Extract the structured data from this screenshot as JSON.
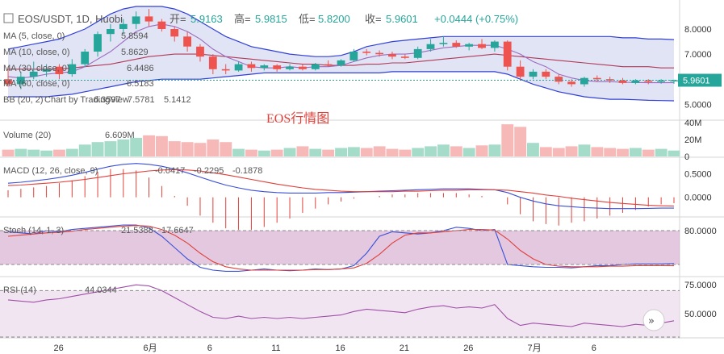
{
  "header": {
    "symbol": "EOS/USDT, 1D, Huobi",
    "open_label": "开=",
    "open": "5.9163",
    "high_label": "高=",
    "high": "5.9815",
    "low_label": "低=",
    "low": "5.8200",
    "close_label": "收=",
    "close": "5.9601",
    "change": "+0.0444 (+0.75%)"
  },
  "watermark": "EOS行情图",
  "logo_text": "Chart by TradingView",
  "colors": {
    "up": "#26a69a",
    "down": "#ef5350",
    "up_vol": "#a5dcc9",
    "down_vol": "#f7b9b8",
    "ma5": "#9c6bbf",
    "ma10": "#6a8fd8",
    "ma30": "#5aa55a",
    "ma60": "#b03a5a",
    "bb_upper": "#3140d8",
    "bb_lower": "#3140d8",
    "bb_fill": "#d4d8f0",
    "macd": "#3a4fd8",
    "signal": "#e0403a",
    "hist": "#e0403a",
    "stoch_k": "#3a4fd8",
    "stoch_d": "#e0403a",
    "stoch_band": "#cc9bc7",
    "rsi": "#a04fa8",
    "rsi_band": "#ead4ea"
  },
  "indicators": {
    "ma5": {
      "label": "MA (5, close, 0)",
      "value": "5.8594"
    },
    "ma10": {
      "label": "MA (10, close, 0)",
      "value": "5.8629"
    },
    "ma30": {
      "label": "MA (30, close, 0)",
      "value": "6.4486"
    },
    "ma60": {
      "label": "MA (60, close, 0)",
      "value": "6.5183"
    },
    "bb": {
      "label": "BB (20, 2)",
      "v1": "6.3597",
      "v2": "7.5781",
      "v3": "5.1412"
    },
    "volume": {
      "label": "Volume (20)",
      "value": "6.609M"
    },
    "macd": {
      "label": "MACD (12, 26, close, 9)",
      "v1": "-0.0417",
      "v2": "-0.2295",
      "v3": "-0.1878"
    },
    "stoch": {
      "label": "Stoch (14, 1, 3)",
      "v1": "21.5388",
      "v2": "17.6647"
    },
    "rsi": {
      "label": "RSI (14)",
      "value": "44.0344"
    }
  },
  "chart_data": [
    {
      "type": "candlestick",
      "title": "EOS/USDT, 1D, Huobi",
      "x_ticks": [
        "26",
        "6月",
        "6",
        "11",
        "16",
        "21",
        "26",
        "7月",
        "6"
      ],
      "y_ticks": [
        8.0,
        7.0,
        6.0,
        5.0
      ],
      "ylim": [
        4.4,
        8.9
      ],
      "last_price": "5.9601",
      "candles": [
        {
          "o": 6.0,
          "h": 6.5,
          "l": 5.7,
          "c": 5.8
        },
        {
          "o": 5.8,
          "h": 6.3,
          "l": 5.6,
          "c": 6.1
        },
        {
          "o": 6.1,
          "h": 6.7,
          "l": 6.0,
          "c": 6.3
        },
        {
          "o": 6.3,
          "h": 6.6,
          "l": 6.1,
          "c": 6.4
        },
        {
          "o": 6.5,
          "h": 6.6,
          "l": 6.0,
          "c": 6.2
        },
        {
          "o": 6.2,
          "h": 6.8,
          "l": 6.1,
          "c": 6.6
        },
        {
          "o": 6.6,
          "h": 7.2,
          "l": 6.5,
          "c": 7.1
        },
        {
          "o": 7.1,
          "h": 7.9,
          "l": 6.9,
          "c": 7.8
        },
        {
          "o": 7.8,
          "h": 8.2,
          "l": 7.5,
          "c": 8.0
        },
        {
          "o": 8.0,
          "h": 8.4,
          "l": 7.8,
          "c": 8.2
        },
        {
          "o": 8.2,
          "h": 8.7,
          "l": 8.0,
          "c": 8.5
        },
        {
          "o": 8.5,
          "h": 8.8,
          "l": 8.1,
          "c": 8.3
        },
        {
          "o": 8.3,
          "h": 8.4,
          "l": 7.9,
          "c": 8.0
        },
        {
          "o": 8.0,
          "h": 8.1,
          "l": 7.5,
          "c": 7.7
        },
        {
          "o": 7.7,
          "h": 7.9,
          "l": 7.1,
          "c": 7.3
        },
        {
          "o": 7.3,
          "h": 7.4,
          "l": 6.7,
          "c": 6.9
        },
        {
          "o": 6.9,
          "h": 7.0,
          "l": 6.2,
          "c": 6.4
        },
        {
          "o": 6.4,
          "h": 6.6,
          "l": 6.2,
          "c": 6.35
        },
        {
          "o": 6.35,
          "h": 6.7,
          "l": 6.3,
          "c": 6.6
        },
        {
          "o": 6.6,
          "h": 6.7,
          "l": 6.3,
          "c": 6.45
        },
        {
          "o": 6.45,
          "h": 6.6,
          "l": 6.35,
          "c": 6.55
        },
        {
          "o": 6.55,
          "h": 6.6,
          "l": 6.3,
          "c": 6.4
        },
        {
          "o": 6.4,
          "h": 6.6,
          "l": 6.35,
          "c": 6.5
        },
        {
          "o": 6.5,
          "h": 6.6,
          "l": 6.35,
          "c": 6.4
        },
        {
          "o": 6.4,
          "h": 6.65,
          "l": 6.35,
          "c": 6.6
        },
        {
          "o": 6.6,
          "h": 6.75,
          "l": 6.5,
          "c": 6.55
        },
        {
          "o": 6.55,
          "h": 6.8,
          "l": 6.5,
          "c": 6.75
        },
        {
          "o": 6.75,
          "h": 7.2,
          "l": 6.7,
          "c": 7.1
        },
        {
          "o": 7.1,
          "h": 7.2,
          "l": 6.95,
          "c": 7.05
        },
        {
          "o": 7.05,
          "h": 7.15,
          "l": 6.9,
          "c": 7.0
        },
        {
          "o": 7.0,
          "h": 7.1,
          "l": 6.8,
          "c": 6.9
        },
        {
          "o": 6.9,
          "h": 7.0,
          "l": 6.8,
          "c": 6.85
        },
        {
          "o": 6.85,
          "h": 7.3,
          "l": 6.8,
          "c": 7.2
        },
        {
          "o": 7.2,
          "h": 7.6,
          "l": 7.1,
          "c": 7.4
        },
        {
          "o": 7.4,
          "h": 7.7,
          "l": 7.3,
          "c": 7.45
        },
        {
          "o": 7.45,
          "h": 7.55,
          "l": 7.25,
          "c": 7.3
        },
        {
          "o": 7.3,
          "h": 7.45,
          "l": 7.15,
          "c": 7.4
        },
        {
          "o": 7.4,
          "h": 7.6,
          "l": 7.2,
          "c": 7.25
        },
        {
          "o": 7.25,
          "h": 7.55,
          "l": 7.1,
          "c": 7.5
        },
        {
          "o": 7.5,
          "h": 7.55,
          "l": 6.35,
          "c": 6.5
        },
        {
          "o": 6.5,
          "h": 6.75,
          "l": 5.95,
          "c": 6.1
        },
        {
          "o": 6.1,
          "h": 6.4,
          "l": 6.0,
          "c": 6.3
        },
        {
          "o": 6.3,
          "h": 6.4,
          "l": 6.0,
          "c": 6.1
        },
        {
          "o": 6.1,
          "h": 6.2,
          "l": 5.8,
          "c": 5.9
        },
        {
          "o": 5.9,
          "h": 6.0,
          "l": 5.7,
          "c": 5.8
        },
        {
          "o": 5.8,
          "h": 6.1,
          "l": 5.7,
          "c": 6.05
        },
        {
          "o": 6.05,
          "h": 6.15,
          "l": 5.9,
          "c": 6.0
        },
        {
          "o": 6.0,
          "h": 6.1,
          "l": 5.85,
          "c": 5.95
        },
        {
          "o": 5.95,
          "h": 6.05,
          "l": 5.8,
          "c": 5.85
        },
        {
          "o": 5.85,
          "h": 6.0,
          "l": 5.8,
          "c": 5.95
        },
        {
          "o": 5.95,
          "h": 6.0,
          "l": 5.8,
          "c": 5.9
        },
        {
          "o": 5.9,
          "h": 6.0,
          "l": 5.82,
          "c": 5.95
        },
        {
          "o": 5.9163,
          "h": 5.9815,
          "l": 5.82,
          "c": 5.9601
        }
      ],
      "bb_upper": [
        7.2,
        7.3,
        7.4,
        7.5,
        7.6,
        7.8,
        8.0,
        8.3,
        8.6,
        8.8,
        8.9,
        8.9,
        8.9,
        8.8,
        8.6,
        8.3,
        8.0,
        7.7,
        7.5,
        7.3,
        7.2,
        7.1,
        7.0,
        6.95,
        6.9,
        6.9,
        6.95,
        7.1,
        7.3,
        7.4,
        7.5,
        7.55,
        7.6,
        7.65,
        7.7,
        7.7,
        7.7,
        7.7,
        7.7,
        7.7,
        7.7,
        7.7,
        7.7,
        7.7,
        7.7,
        7.7,
        7.7,
        7.7,
        7.65,
        7.65,
        7.6,
        7.6,
        7.58
      ],
      "bb_lower": [
        5.3,
        5.3,
        5.3,
        5.3,
        5.35,
        5.4,
        5.5,
        5.6,
        5.7,
        5.8,
        5.9,
        5.95,
        6.0,
        6.0,
        6.0,
        6.0,
        6.05,
        6.1,
        6.15,
        6.2,
        6.25,
        6.25,
        6.25,
        6.25,
        6.25,
        6.25,
        6.25,
        6.25,
        6.25,
        6.25,
        6.3,
        6.3,
        6.3,
        6.3,
        6.3,
        6.3,
        6.3,
        6.3,
        6.3,
        6.2,
        6.0,
        5.8,
        5.65,
        5.5,
        5.4,
        5.3,
        5.25,
        5.2,
        5.2,
        5.18,
        5.16,
        5.15,
        5.14
      ],
      "ma_fast": [
        6.1,
        6.05,
        6.1,
        6.2,
        6.25,
        6.3,
        6.5,
        6.8,
        7.1,
        7.5,
        7.9,
        8.1,
        8.2,
        8.1,
        7.9,
        7.6,
        7.2,
        6.9,
        6.7,
        6.5,
        6.45,
        6.45,
        6.5,
        6.45,
        6.5,
        6.5,
        6.55,
        6.7,
        6.85,
        6.95,
        7.0,
        7.0,
        7.05,
        7.15,
        7.25,
        7.3,
        7.35,
        7.35,
        7.35,
        7.2,
        7.0,
        6.7,
        6.5,
        6.2,
        6.05,
        5.95,
        5.9,
        5.9,
        5.88,
        5.87,
        5.86,
        5.86,
        5.86
      ],
      "ma_slow": [
        6.4,
        6.4,
        6.4,
        6.4,
        6.4,
        6.45,
        6.5,
        6.55,
        6.6,
        6.7,
        6.8,
        6.9,
        6.95,
        7.0,
        7.0,
        7.0,
        6.95,
        6.9,
        6.85,
        6.8,
        6.75,
        6.7,
        6.65,
        6.6,
        6.6,
        6.55,
        6.55,
        6.55,
        6.6,
        6.6,
        6.65,
        6.65,
        6.7,
        6.75,
        6.8,
        6.85,
        6.9,
        6.95,
        7.0,
        6.95,
        6.9,
        6.85,
        6.8,
        6.75,
        6.7,
        6.65,
        6.6,
        6.55,
        6.5,
        6.5,
        6.5,
        6.45,
        6.45
      ]
    },
    {
      "type": "bar",
      "title": "Volume (20)",
      "y_ticks": [
        "40M",
        "20M",
        "0"
      ],
      "ylim": [
        0,
        40
      ],
      "values": [
        8,
        9,
        8,
        7,
        8,
        9,
        14,
        17,
        18,
        20,
        22,
        25,
        24,
        18,
        17,
        16,
        20,
        17,
        9,
        8,
        7,
        8,
        10,
        12,
        9,
        8,
        10,
        11,
        10,
        12,
        9,
        8,
        10,
        12,
        14,
        12,
        10,
        13,
        14,
        38,
        35,
        16,
        11,
        10,
        12,
        14,
        11,
        10,
        9,
        10,
        8,
        9,
        7
      ]
    },
    {
      "type": "line",
      "title": "MACD (12, 26, close, 9)",
      "y_ticks": [
        0.5,
        0.0
      ],
      "ylim": [
        -0.4,
        0.8
      ],
      "macd": [
        0.3,
        0.32,
        0.35,
        0.38,
        0.42,
        0.47,
        0.53,
        0.6,
        0.66,
        0.7,
        0.72,
        0.7,
        0.66,
        0.6,
        0.52,
        0.43,
        0.34,
        0.26,
        0.2,
        0.15,
        0.12,
        0.1,
        0.09,
        0.09,
        0.09,
        0.1,
        0.1,
        0.11,
        0.12,
        0.13,
        0.14,
        0.15,
        0.16,
        0.17,
        0.18,
        0.18,
        0.18,
        0.17,
        0.16,
        0.1,
        0.0,
        -0.08,
        -0.14,
        -0.18,
        -0.2,
        -0.22,
        -0.23,
        -0.24,
        -0.24,
        -0.24,
        -0.235,
        -0.23,
        -0.2295
      ],
      "signal": [
        0.25,
        0.26,
        0.28,
        0.3,
        0.32,
        0.35,
        0.38,
        0.42,
        0.46,
        0.5,
        0.53,
        0.56,
        0.58,
        0.59,
        0.58,
        0.56,
        0.52,
        0.48,
        0.43,
        0.38,
        0.33,
        0.28,
        0.24,
        0.2,
        0.17,
        0.15,
        0.13,
        0.12,
        0.12,
        0.12,
        0.12,
        0.13,
        0.13,
        0.14,
        0.15,
        0.15,
        0.16,
        0.16,
        0.16,
        0.15,
        0.12,
        0.09,
        0.05,
        0.02,
        -0.02,
        -0.05,
        -0.08,
        -0.11,
        -0.13,
        -0.15,
        -0.17,
        -0.18,
        -0.1878
      ]
    },
    {
      "type": "line",
      "title": "Stoch (14, 1, 3)",
      "y_ticks": [
        80.0
      ],
      "ylim": [
        0,
        100
      ],
      "k": [
        78,
        76,
        74,
        80,
        78,
        82,
        84,
        86,
        88,
        90,
        90,
        85,
        70,
        50,
        30,
        15,
        10,
        8,
        8,
        10,
        12,
        10,
        9,
        10,
        12,
        11,
        12,
        18,
        40,
        70,
        78,
        76,
        74,
        76,
        80,
        86,
        84,
        80,
        82,
        20,
        18,
        16,
        15,
        15,
        14,
        16,
        18,
        18,
        20,
        21,
        21,
        21,
        21.5
      ],
      "d": [
        70,
        72,
        74,
        76,
        77,
        79,
        82,
        84,
        86,
        88,
        89,
        88,
        82,
        72,
        58,
        40,
        25,
        16,
        12,
        10,
        10,
        10,
        10,
        10,
        11,
        11,
        12,
        14,
        22,
        38,
        58,
        72,
        76,
        76,
        78,
        80,
        82,
        82,
        81,
        65,
        45,
        30,
        20,
        17,
        16,
        16,
        16,
        17,
        17,
        18,
        18,
        18,
        17.7
      ]
    },
    {
      "type": "line",
      "title": "RSI (14)",
      "y_ticks": [
        75.0,
        50.0
      ],
      "ylim": [
        30,
        80
      ],
      "values": [
        62,
        61,
        60,
        62,
        63,
        65,
        67,
        69,
        71,
        73,
        75,
        74,
        70,
        64,
        58,
        52,
        47,
        46,
        48,
        46,
        47,
        46,
        47,
        46,
        47,
        48,
        49,
        52,
        54,
        53,
        52,
        51,
        54,
        56,
        57,
        55,
        56,
        55,
        58,
        46,
        40,
        42,
        41,
        40,
        39,
        42,
        41,
        40,
        39,
        41,
        40,
        42,
        44
      ]
    }
  ]
}
